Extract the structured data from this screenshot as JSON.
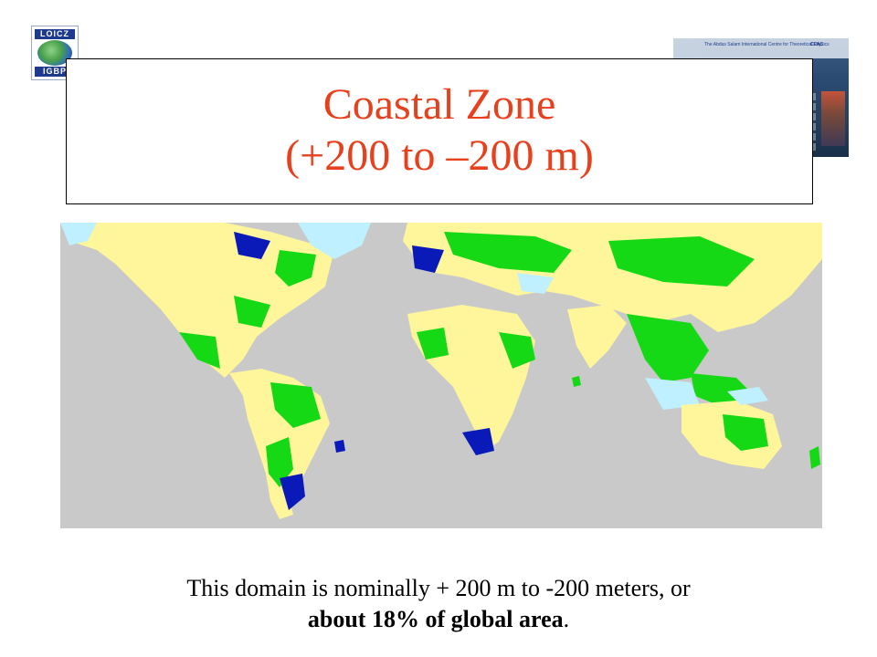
{
  "slide": {
    "title_line1": "Coastal Zone",
    "title_line2": "(+200 to –200 m)",
    "caption_line1": "This domain is nominally + 200 m to -200 meters, or",
    "caption_bold": "about 18% of global area",
    "caption_end": "."
  },
  "logo": {
    "top_text": "LOICZ",
    "bottom_text": "IGBP"
  },
  "inset": {
    "header_left": "The Abdus Salam International Centre for Theoretical Physics",
    "header_right": "CEAC"
  },
  "map": {
    "icon": "world-coastal-zone-map",
    "colors": {
      "ocean": "#c9c9c9",
      "lowland": "#fff59a",
      "coastal_land": "#16d916",
      "shallow_shelf": "#0a1ab8",
      "ice": "#bff0ff"
    }
  },
  "colors": {
    "title": "#e8401c"
  }
}
